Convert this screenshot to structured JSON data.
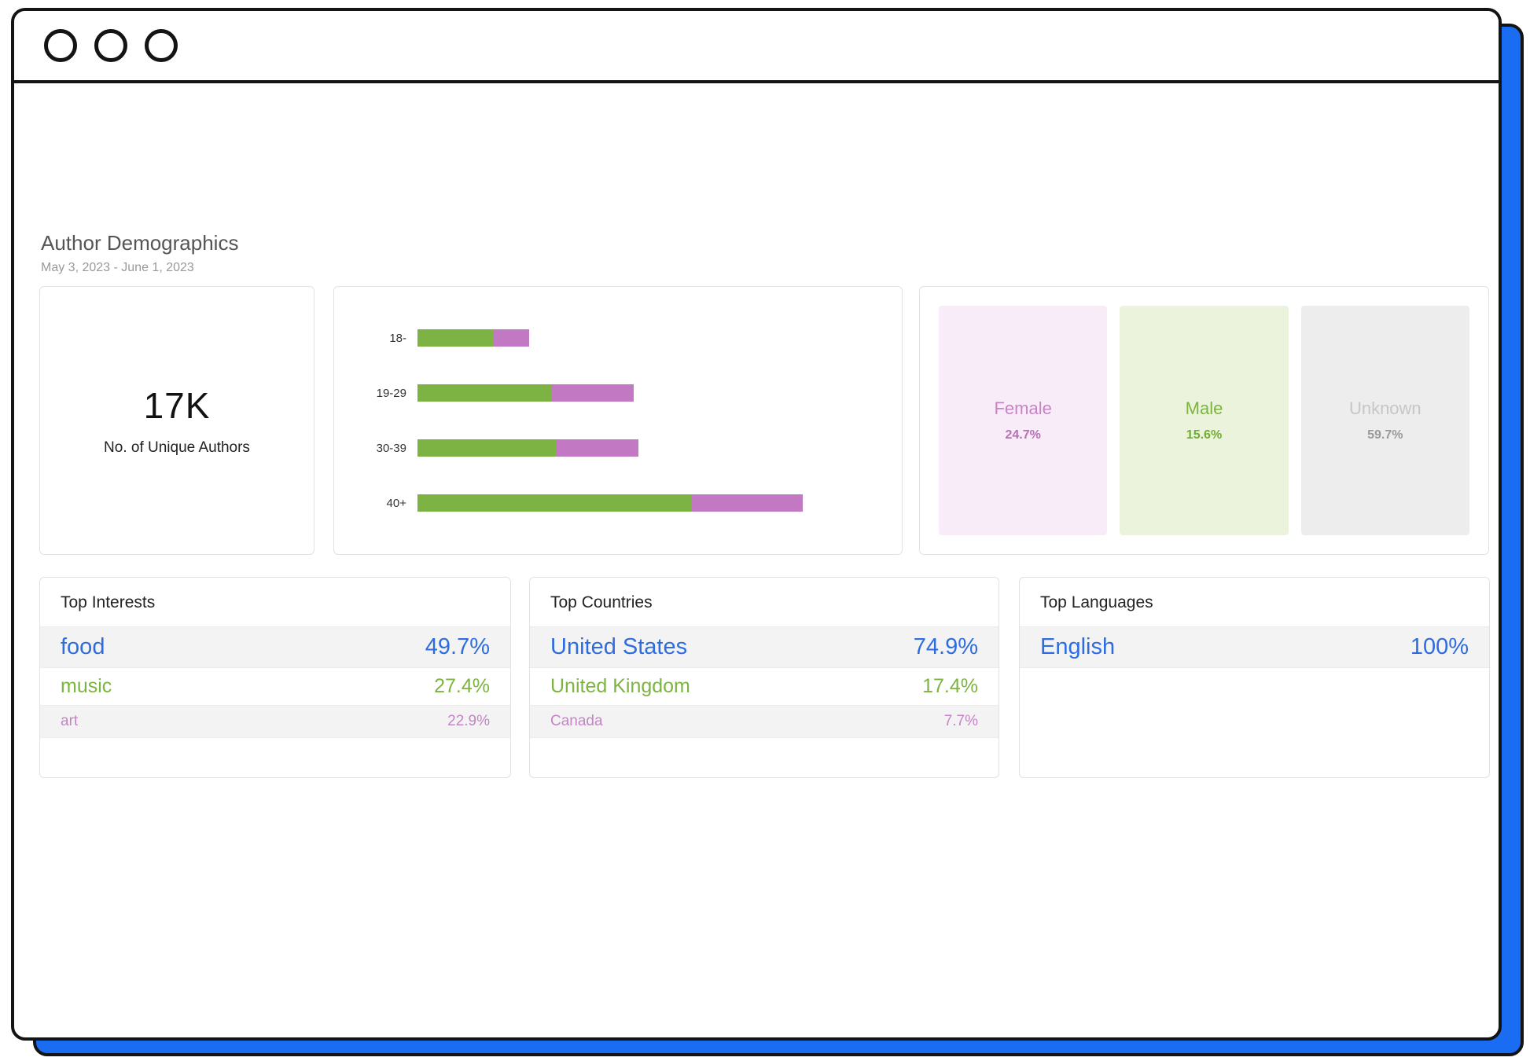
{
  "header": {
    "title": "Author Demographics",
    "date_range": "May 3, 2023 - June 1, 2023"
  },
  "unique_authors": {
    "value": "17K",
    "label": "No. of Unique Authors"
  },
  "chart_data": {
    "type": "bar",
    "orientation": "horizontal",
    "categories": [
      "18-",
      "19-29",
      "30-39",
      "40+"
    ],
    "series": [
      {
        "name": "green",
        "color": "#7cb342",
        "values": [
          16.5,
          29.5,
          30.5,
          60
        ]
      },
      {
        "name": "purple",
        "color": "#c278c2",
        "values": [
          8,
          18,
          18,
          24.5
        ]
      }
    ],
    "unit": "percent-of-plot-width",
    "axis_tick_labels_visible": false,
    "legend": "none",
    "grid": false
  },
  "gender": {
    "items": [
      {
        "label": "Female",
        "value": "24.7%",
        "bg": "#f7ecf7",
        "color": "#c584c5"
      },
      {
        "label": "Male",
        "value": "15.6%",
        "bg": "#ebf3dd",
        "color": "#7db440"
      },
      {
        "label": "Unknown",
        "value": "59.7%",
        "bg": "#ededed",
        "color": "#9a9a9a"
      }
    ]
  },
  "tables": [
    {
      "title": "Top Interests",
      "rows": [
        {
          "label": "food",
          "value": "49.7%",
          "color": "#2e6ddf"
        },
        {
          "label": "music",
          "value": "27.4%",
          "color": "#7db440"
        },
        {
          "label": "art",
          "value": "22.9%",
          "color": "#c584c5"
        }
      ]
    },
    {
      "title": "Top Countries",
      "rows": [
        {
          "label": "United States",
          "value": "74.9%",
          "color": "#2e6ddf"
        },
        {
          "label": "United Kingdom",
          "value": "17.4%",
          "color": "#7db440"
        },
        {
          "label": "Canada",
          "value": "7.7%",
          "color": "#c584c5"
        }
      ]
    },
    {
      "title": "Top Languages",
      "rows": [
        {
          "label": "English",
          "value": "100%",
          "color": "#2e6ddf"
        }
      ]
    }
  ]
}
